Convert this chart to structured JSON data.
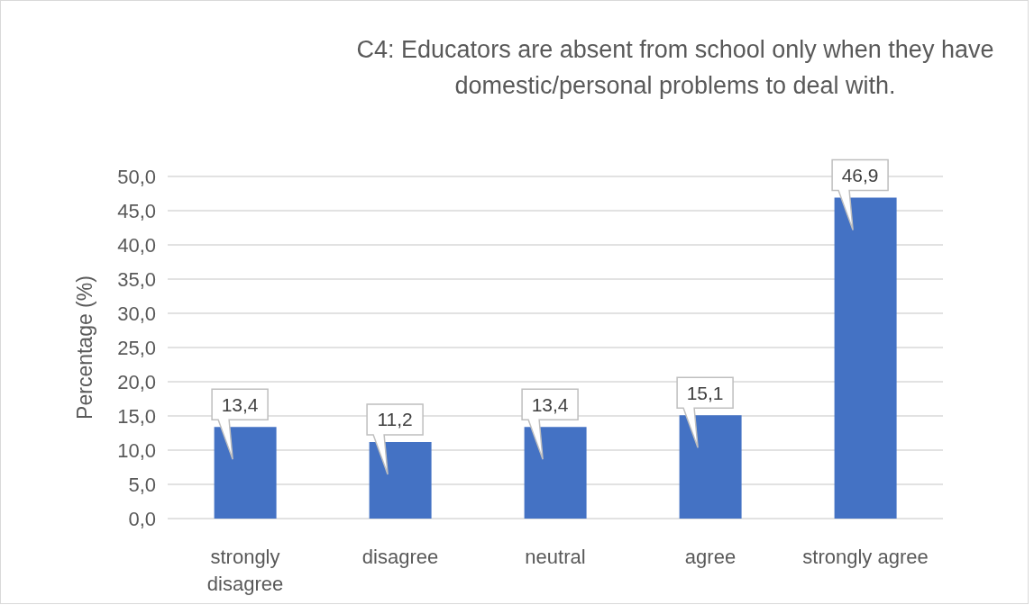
{
  "chart_data": {
    "type": "bar",
    "title": "C4: Educators are absent from school only when they have domestic/personal problems to deal with.",
    "ylabel": "Percentage (%)",
    "categories": [
      "strongly disagree",
      "disagree",
      "neutral",
      "agree",
      "strongly agree"
    ],
    "values": [
      13.4,
      11.2,
      13.4,
      15.1,
      46.9
    ],
    "color": "#4472c4",
    "value_labels": [
      "13,4",
      "11,2",
      "13,4",
      "15,1",
      "46,9"
    ],
    "ylim": [
      0,
      50
    ],
    "yticks": [
      {
        "value": 0,
        "label": "0,0"
      },
      {
        "value": 5,
        "label": "5,0"
      },
      {
        "value": 10,
        "label": "10,0"
      },
      {
        "value": 15,
        "label": "15,0"
      },
      {
        "value": 20,
        "label": "20,0"
      },
      {
        "value": 25,
        "label": "25,0"
      },
      {
        "value": 30,
        "label": "30,0"
      },
      {
        "value": 35,
        "label": "35,0"
      },
      {
        "value": 40,
        "label": "40,0"
      },
      {
        "value": 45,
        "label": "45,0"
      },
      {
        "value": 50,
        "label": "50,0"
      }
    ],
    "grid": "y"
  }
}
